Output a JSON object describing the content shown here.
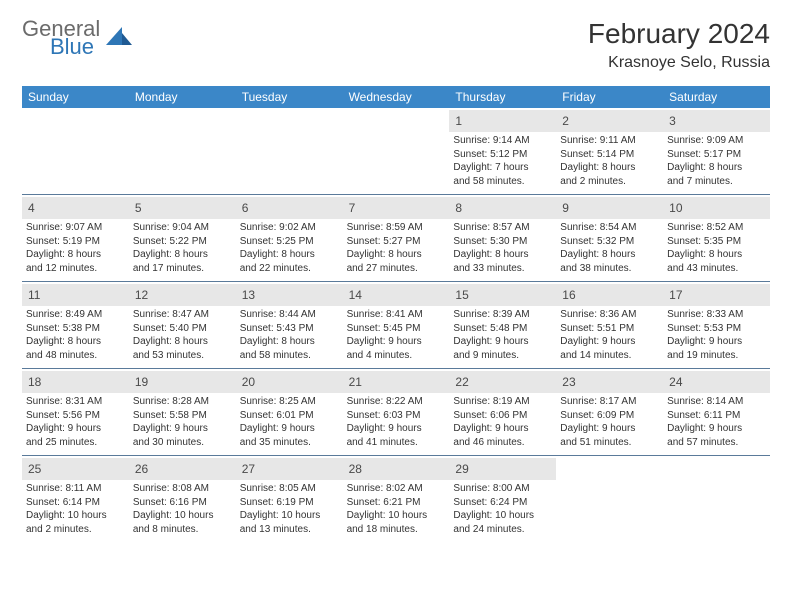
{
  "brand": {
    "line1": "General",
    "line2": "Blue"
  },
  "title": "February 2024",
  "location": "Krasnoye Selo, Russia",
  "colors": {
    "header_bg": "#3b87c8",
    "header_text": "#ffffff",
    "daynum_bg": "#e7e7e7",
    "week_border": "#5a7a9a",
    "logo_gray": "#6b6b6b",
    "logo_blue": "#2e76b6"
  },
  "weekdays": [
    "Sunday",
    "Monday",
    "Tuesday",
    "Wednesday",
    "Thursday",
    "Friday",
    "Saturday"
  ],
  "weeks": [
    [
      {},
      {},
      {},
      {},
      {
        "day": "1",
        "sunrise": "Sunrise: 9:14 AM",
        "sunset": "Sunset: 5:12 PM",
        "daylight1": "Daylight: 7 hours",
        "daylight2": "and 58 minutes."
      },
      {
        "day": "2",
        "sunrise": "Sunrise: 9:11 AM",
        "sunset": "Sunset: 5:14 PM",
        "daylight1": "Daylight: 8 hours",
        "daylight2": "and 2 minutes."
      },
      {
        "day": "3",
        "sunrise": "Sunrise: 9:09 AM",
        "sunset": "Sunset: 5:17 PM",
        "daylight1": "Daylight: 8 hours",
        "daylight2": "and 7 minutes."
      }
    ],
    [
      {
        "day": "4",
        "sunrise": "Sunrise: 9:07 AM",
        "sunset": "Sunset: 5:19 PM",
        "daylight1": "Daylight: 8 hours",
        "daylight2": "and 12 minutes."
      },
      {
        "day": "5",
        "sunrise": "Sunrise: 9:04 AM",
        "sunset": "Sunset: 5:22 PM",
        "daylight1": "Daylight: 8 hours",
        "daylight2": "and 17 minutes."
      },
      {
        "day": "6",
        "sunrise": "Sunrise: 9:02 AM",
        "sunset": "Sunset: 5:25 PM",
        "daylight1": "Daylight: 8 hours",
        "daylight2": "and 22 minutes."
      },
      {
        "day": "7",
        "sunrise": "Sunrise: 8:59 AM",
        "sunset": "Sunset: 5:27 PM",
        "daylight1": "Daylight: 8 hours",
        "daylight2": "and 27 minutes."
      },
      {
        "day": "8",
        "sunrise": "Sunrise: 8:57 AM",
        "sunset": "Sunset: 5:30 PM",
        "daylight1": "Daylight: 8 hours",
        "daylight2": "and 33 minutes."
      },
      {
        "day": "9",
        "sunrise": "Sunrise: 8:54 AM",
        "sunset": "Sunset: 5:32 PM",
        "daylight1": "Daylight: 8 hours",
        "daylight2": "and 38 minutes."
      },
      {
        "day": "10",
        "sunrise": "Sunrise: 8:52 AM",
        "sunset": "Sunset: 5:35 PM",
        "daylight1": "Daylight: 8 hours",
        "daylight2": "and 43 minutes."
      }
    ],
    [
      {
        "day": "11",
        "sunrise": "Sunrise: 8:49 AM",
        "sunset": "Sunset: 5:38 PM",
        "daylight1": "Daylight: 8 hours",
        "daylight2": "and 48 minutes."
      },
      {
        "day": "12",
        "sunrise": "Sunrise: 8:47 AM",
        "sunset": "Sunset: 5:40 PM",
        "daylight1": "Daylight: 8 hours",
        "daylight2": "and 53 minutes."
      },
      {
        "day": "13",
        "sunrise": "Sunrise: 8:44 AM",
        "sunset": "Sunset: 5:43 PM",
        "daylight1": "Daylight: 8 hours",
        "daylight2": "and 58 minutes."
      },
      {
        "day": "14",
        "sunrise": "Sunrise: 8:41 AM",
        "sunset": "Sunset: 5:45 PM",
        "daylight1": "Daylight: 9 hours",
        "daylight2": "and 4 minutes."
      },
      {
        "day": "15",
        "sunrise": "Sunrise: 8:39 AM",
        "sunset": "Sunset: 5:48 PM",
        "daylight1": "Daylight: 9 hours",
        "daylight2": "and 9 minutes."
      },
      {
        "day": "16",
        "sunrise": "Sunrise: 8:36 AM",
        "sunset": "Sunset: 5:51 PM",
        "daylight1": "Daylight: 9 hours",
        "daylight2": "and 14 minutes."
      },
      {
        "day": "17",
        "sunrise": "Sunrise: 8:33 AM",
        "sunset": "Sunset: 5:53 PM",
        "daylight1": "Daylight: 9 hours",
        "daylight2": "and 19 minutes."
      }
    ],
    [
      {
        "day": "18",
        "sunrise": "Sunrise: 8:31 AM",
        "sunset": "Sunset: 5:56 PM",
        "daylight1": "Daylight: 9 hours",
        "daylight2": "and 25 minutes."
      },
      {
        "day": "19",
        "sunrise": "Sunrise: 8:28 AM",
        "sunset": "Sunset: 5:58 PM",
        "daylight1": "Daylight: 9 hours",
        "daylight2": "and 30 minutes."
      },
      {
        "day": "20",
        "sunrise": "Sunrise: 8:25 AM",
        "sunset": "Sunset: 6:01 PM",
        "daylight1": "Daylight: 9 hours",
        "daylight2": "and 35 minutes."
      },
      {
        "day": "21",
        "sunrise": "Sunrise: 8:22 AM",
        "sunset": "Sunset: 6:03 PM",
        "daylight1": "Daylight: 9 hours",
        "daylight2": "and 41 minutes."
      },
      {
        "day": "22",
        "sunrise": "Sunrise: 8:19 AM",
        "sunset": "Sunset: 6:06 PM",
        "daylight1": "Daylight: 9 hours",
        "daylight2": "and 46 minutes."
      },
      {
        "day": "23",
        "sunrise": "Sunrise: 8:17 AM",
        "sunset": "Sunset: 6:09 PM",
        "daylight1": "Daylight: 9 hours",
        "daylight2": "and 51 minutes."
      },
      {
        "day": "24",
        "sunrise": "Sunrise: 8:14 AM",
        "sunset": "Sunset: 6:11 PM",
        "daylight1": "Daylight: 9 hours",
        "daylight2": "and 57 minutes."
      }
    ],
    [
      {
        "day": "25",
        "sunrise": "Sunrise: 8:11 AM",
        "sunset": "Sunset: 6:14 PM",
        "daylight1": "Daylight: 10 hours",
        "daylight2": "and 2 minutes."
      },
      {
        "day": "26",
        "sunrise": "Sunrise: 8:08 AM",
        "sunset": "Sunset: 6:16 PM",
        "daylight1": "Daylight: 10 hours",
        "daylight2": "and 8 minutes."
      },
      {
        "day": "27",
        "sunrise": "Sunrise: 8:05 AM",
        "sunset": "Sunset: 6:19 PM",
        "daylight1": "Daylight: 10 hours",
        "daylight2": "and 13 minutes."
      },
      {
        "day": "28",
        "sunrise": "Sunrise: 8:02 AM",
        "sunset": "Sunset: 6:21 PM",
        "daylight1": "Daylight: 10 hours",
        "daylight2": "and 18 minutes."
      },
      {
        "day": "29",
        "sunrise": "Sunrise: 8:00 AM",
        "sunset": "Sunset: 6:24 PM",
        "daylight1": "Daylight: 10 hours",
        "daylight2": "and 24 minutes."
      },
      {},
      {}
    ]
  ]
}
